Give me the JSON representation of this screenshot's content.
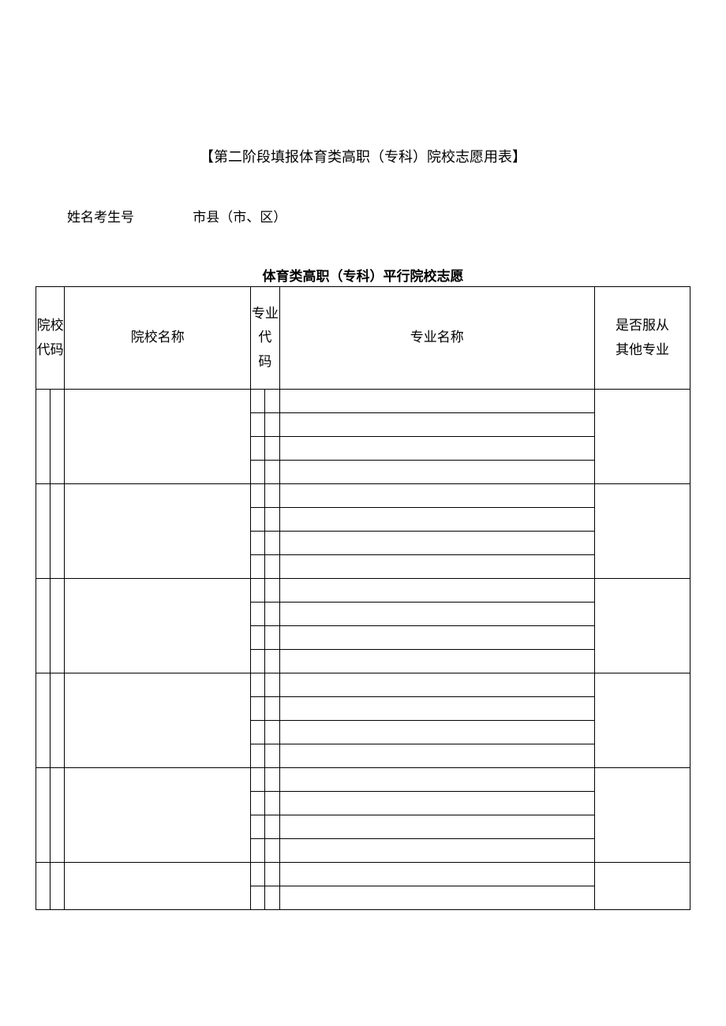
{
  "title": "【第二阶段填报体育类高职（专科）院校志愿用表】",
  "info": {
    "name_id_label": "姓名考生号",
    "city_label": "市县（市、区）"
  },
  "subtitle": "体育类高职（专科）平行院校志愿",
  "table": {
    "headers": {
      "school_code": "院校代码",
      "school_name": "院校名称",
      "major_code": "专业代\n码",
      "major_name": "专业名称",
      "obey": "是否服从\n其他专业"
    },
    "school_groups": 6,
    "majors_per_school": 4,
    "last_group_majors": 2,
    "colors": {
      "border": "#000000",
      "text": "#000000",
      "bg": "#ffffff"
    },
    "font_size_body": 17,
    "font_size_title": 18,
    "col_widths": {
      "code_a": 30,
      "code_b": 75,
      "name": 195,
      "major_a": 30,
      "major_b": 65,
      "major_name": 330,
      "obey": 100
    },
    "header_row_height": 130,
    "sub_row_height": 30
  }
}
